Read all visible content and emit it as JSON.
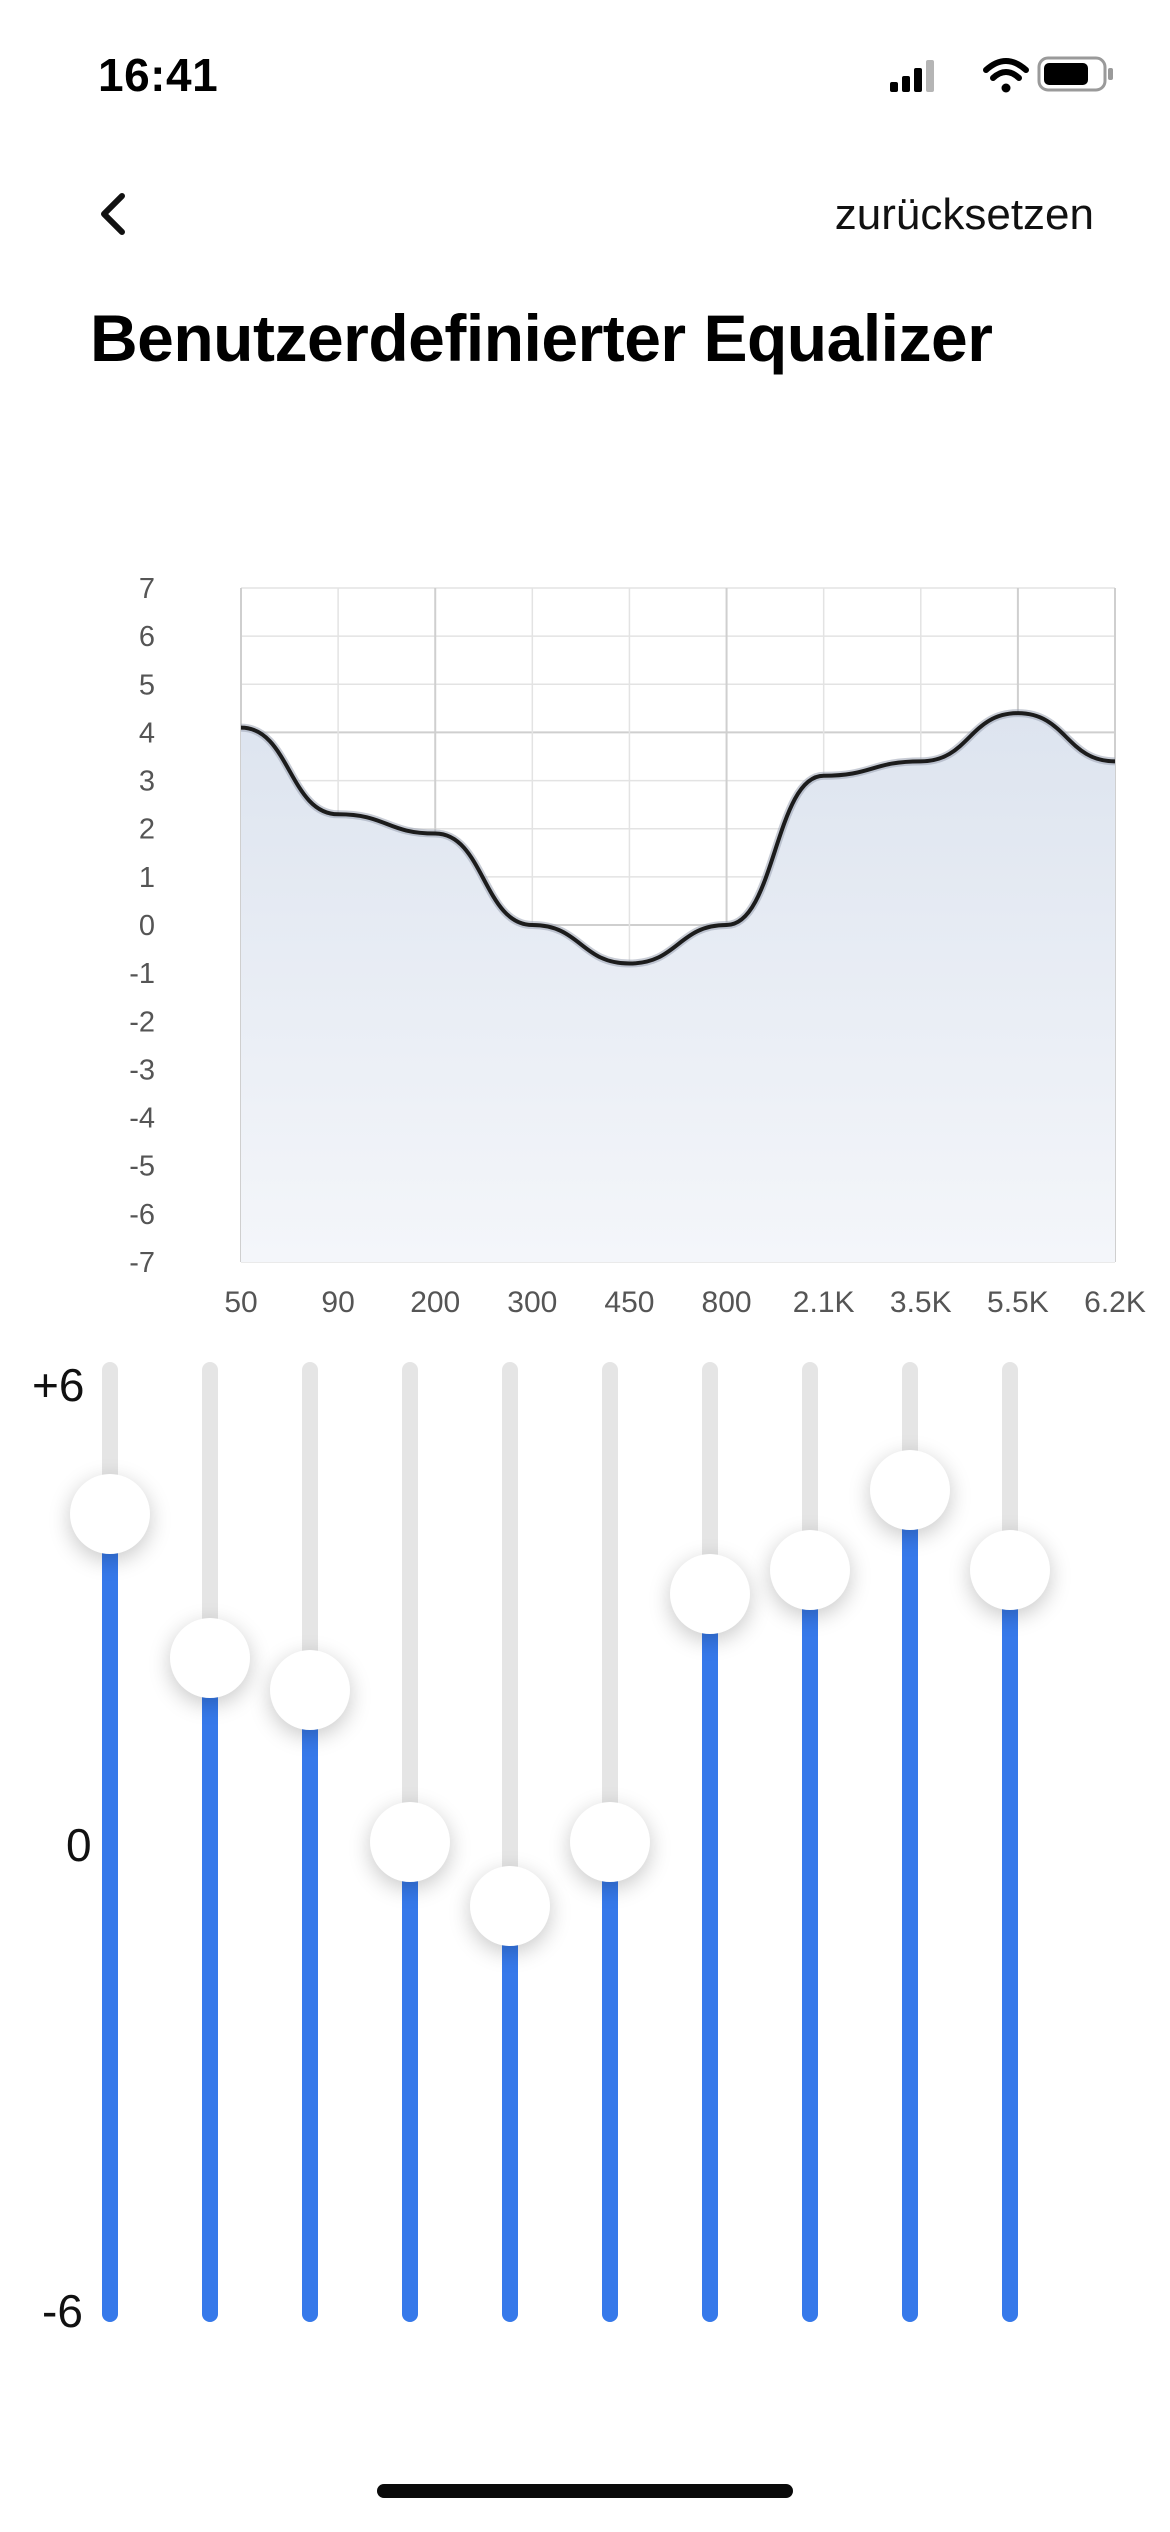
{
  "status_bar": {
    "time": "16:41",
    "icons": [
      "signal-icon",
      "wifi-icon",
      "battery-icon"
    ]
  },
  "nav": {
    "back_icon": "chevron-left-icon",
    "reset_label": "zurücksetzen"
  },
  "title": "Benutzerdefinierter Equalizer",
  "chart_data": {
    "type": "area",
    "title": "",
    "xlabel": "",
    "ylabel": "",
    "x_ticks": [
      "50",
      "90",
      "200",
      "300",
      "450",
      "800",
      "2.1K",
      "3.5K",
      "5.5K",
      "6.2K"
    ],
    "y_ticks": [
      "7",
      "6",
      "5",
      "4",
      "3",
      "2",
      "1",
      "0",
      "-1",
      "-2",
      "-3",
      "-4",
      "-5",
      "-6",
      "-7"
    ],
    "ylim": [
      -7,
      7
    ],
    "grid": true,
    "series": [
      {
        "x": [
          "50",
          "90",
          "200",
          "300",
          "450",
          "800",
          "2.1K",
          "3.5K",
          "5.5K",
          "6.2K"
        ],
        "values": [
          4.1,
          2.3,
          1.9,
          0.0,
          -0.8,
          0.0,
          3.1,
          3.4,
          4.4,
          3.4
        ]
      }
    ],
    "colors": {
      "line": "#1c1c1c",
      "fill_top": "#dde4ef",
      "fill_bottom": "#f4f6fa",
      "grid": "#e3e3e3",
      "grid_major": "#cfcfcf"
    }
  },
  "sliders": {
    "max_label": "+6",
    "mid_label": "0",
    "min_label": "-6",
    "range": [
      -6,
      6
    ],
    "values": [
      4.1,
      2.3,
      1.9,
      0.0,
      -0.8,
      0.0,
      3.1,
      3.4,
      4.4,
      3.4
    ],
    "colors": {
      "fill": "#3679ea",
      "track": "#e5e5e5"
    }
  }
}
